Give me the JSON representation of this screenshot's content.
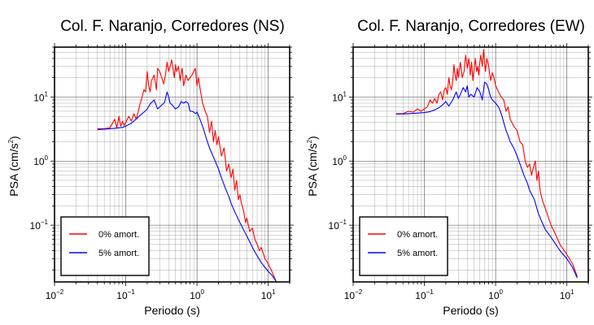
{
  "chart_data": [
    {
      "type": "line",
      "title": "Col. F. Naranjo, Corredores (NS)",
      "xlabel": "Periodo (s)",
      "ylabel": "PSA (cm/s",
      "ylabel_unit_exp": "2",
      "ylabel_close": ")",
      "x_scale": "log",
      "y_scale": "log",
      "xlim": [
        0.01,
        20
      ],
      "ylim": [
        0.013,
        60
      ],
      "x_ticks": [
        {
          "value": 0.01,
          "base": "10",
          "exp": "−2"
        },
        {
          "value": 0.1,
          "base": "10",
          "exp": "−1"
        },
        {
          "value": 1,
          "base": "10",
          "exp": "0"
        },
        {
          "value": 10,
          "base": "10",
          "exp": "1"
        }
      ],
      "y_ticks": [
        {
          "value": 0.1,
          "base": "10",
          "exp": "−1"
        },
        {
          "value": 1,
          "base": "10",
          "exp": "0"
        },
        {
          "value": 10,
          "base": "10",
          "exp": "1"
        }
      ],
      "grid": true,
      "legend_position": "bottom-left",
      "series": [
        {
          "name": "0% amort.",
          "color": "#ff0000",
          "x": [
            0.04,
            0.05,
            0.06,
            0.07,
            0.075,
            0.08,
            0.085,
            0.09,
            0.095,
            0.1,
            0.11,
            0.12,
            0.13,
            0.14,
            0.15,
            0.16,
            0.17,
            0.18,
            0.19,
            0.2,
            0.21,
            0.22,
            0.23,
            0.25,
            0.27,
            0.28,
            0.3,
            0.32,
            0.34,
            0.36,
            0.38,
            0.4,
            0.42,
            0.44,
            0.46,
            0.48,
            0.5,
            0.52,
            0.55,
            0.58,
            0.6,
            0.62,
            0.65,
            0.7,
            0.75,
            0.8,
            0.85,
            0.9,
            0.95,
            1.0,
            1.05,
            1.1,
            1.2,
            1.3,
            1.4,
            1.5,
            1.6,
            1.7,
            1.8,
            1.9,
            2.0,
            2.2,
            2.4,
            2.6,
            2.8,
            3.0,
            3.2,
            3.4,
            3.6,
            3.8,
            4.0,
            4.2,
            4.5,
            4.8,
            5.0,
            5.5,
            6.0,
            6.5,
            7.0,
            7.5,
            8.0,
            9.0,
            10.0,
            11.0,
            12.0,
            13.0
          ],
          "y": [
            3.2,
            3.2,
            3.3,
            4.5,
            3.3,
            5.0,
            3.5,
            4.2,
            3.6,
            4.0,
            5.0,
            4.2,
            5.5,
            4.5,
            6.0,
            8.0,
            10.0,
            13.0,
            12.0,
            25.0,
            15.0,
            12.0,
            18.0,
            22.0,
            13.0,
            28.0,
            25.0,
            20.0,
            16.0,
            22.0,
            35.0,
            25.0,
            30.0,
            38.0,
            28.0,
            20.0,
            32.0,
            25.0,
            30.0,
            18.0,
            24.0,
            28.0,
            15.0,
            22.0,
            18.0,
            20.0,
            22.0,
            25.0,
            28.0,
            15.0,
            20.0,
            14.0,
            8.0,
            6.0,
            5.0,
            2.8,
            4.2,
            2.0,
            3.0,
            1.8,
            2.4,
            1.2,
            1.6,
            0.7,
            0.9,
            0.55,
            0.75,
            0.35,
            0.5,
            0.25,
            0.3,
            0.22,
            0.17,
            0.11,
            0.13,
            0.08,
            0.09,
            0.06,
            0.05,
            0.04,
            0.045,
            0.03,
            0.025,
            0.02,
            0.016,
            0.013
          ]
        },
        {
          "name": "5% amort.",
          "color": "#0000ff",
          "x": [
            0.04,
            0.05,
            0.06,
            0.07,
            0.08,
            0.09,
            0.1,
            0.12,
            0.14,
            0.16,
            0.18,
            0.2,
            0.22,
            0.25,
            0.28,
            0.3,
            0.32,
            0.35,
            0.38,
            0.4,
            0.42,
            0.45,
            0.5,
            0.55,
            0.6,
            0.65,
            0.7,
            0.75,
            0.8,
            0.85,
            0.9,
            0.95,
            1.0,
            1.1,
            1.2,
            1.3,
            1.4,
            1.5,
            1.6,
            1.8,
            2.0,
            2.2,
            2.5,
            2.8,
            3.0,
            3.5,
            4.0,
            4.5,
            5.0,
            6.0,
            7.0,
            8.0,
            9.0,
            10.0,
            11.0,
            12.0,
            13.0
          ],
          "y": [
            3.1,
            3.15,
            3.2,
            3.25,
            3.3,
            3.35,
            3.5,
            3.9,
            4.5,
            5.2,
            5.8,
            6.5,
            7.8,
            9.0,
            6.5,
            7.0,
            7.5,
            8.2,
            12.0,
            10.0,
            8.0,
            7.5,
            6.5,
            7.0,
            8.5,
            8.0,
            8.5,
            8.0,
            6.0,
            6.0,
            5.8,
            5.5,
            5.8,
            4.5,
            3.5,
            2.6,
            2.0,
            1.6,
            1.35,
            1.0,
            0.75,
            0.55,
            0.38,
            0.28,
            0.22,
            0.15,
            0.11,
            0.085,
            0.068,
            0.045,
            0.033,
            0.026,
            0.022,
            0.019,
            0.017,
            0.015,
            0.013
          ]
        }
      ]
    },
    {
      "type": "line",
      "title": "Col. F. Naranjo, Corredores (EW)",
      "xlabel": "Periodo (s)",
      "ylabel": "PSA (cm/s",
      "ylabel_unit_exp": "2",
      "ylabel_close": ")",
      "x_scale": "log",
      "y_scale": "log",
      "xlim": [
        0.01,
        20
      ],
      "ylim": [
        0.013,
        60
      ],
      "x_ticks": [
        {
          "value": 0.01,
          "base": "10",
          "exp": "−2"
        },
        {
          "value": 0.1,
          "base": "10",
          "exp": "−1"
        },
        {
          "value": 1,
          "base": "10",
          "exp": "0"
        },
        {
          "value": 10,
          "base": "10",
          "exp": "1"
        }
      ],
      "y_ticks": [
        {
          "value": 0.1,
          "base": "10",
          "exp": "−1"
        },
        {
          "value": 1,
          "base": "10",
          "exp": "0"
        },
        {
          "value": 10,
          "base": "10",
          "exp": "1"
        }
      ],
      "grid": true,
      "legend_position": "bottom-left",
      "series": [
        {
          "name": "0% amort.",
          "color": "#ff0000",
          "x": [
            0.04,
            0.05,
            0.06,
            0.07,
            0.08,
            0.09,
            0.1,
            0.11,
            0.12,
            0.13,
            0.14,
            0.15,
            0.16,
            0.17,
            0.18,
            0.19,
            0.2,
            0.21,
            0.22,
            0.23,
            0.24,
            0.25,
            0.26,
            0.27,
            0.28,
            0.29,
            0.3,
            0.32,
            0.34,
            0.36,
            0.38,
            0.4,
            0.42,
            0.44,
            0.46,
            0.48,
            0.5,
            0.52,
            0.54,
            0.56,
            0.58,
            0.6,
            0.62,
            0.65,
            0.68,
            0.7,
            0.72,
            0.75,
            0.8,
            0.85,
            0.9,
            0.95,
            1.0,
            1.1,
            1.2,
            1.3,
            1.4,
            1.5,
            1.6,
            1.8,
            2.0,
            2.2,
            2.4,
            2.6,
            2.8,
            3.0,
            3.2,
            3.4,
            3.6,
            3.8,
            4.0,
            4.2,
            4.5,
            5.0,
            6.0,
            7.0,
            8.0,
            10.0,
            12.0,
            14.0
          ],
          "y": [
            5.5,
            5.5,
            6.0,
            5.8,
            6.5,
            6.0,
            6.5,
            7.0,
            9.0,
            8.0,
            9.5,
            8.0,
            11.0,
            12.0,
            9.0,
            13.0,
            14.0,
            11.0,
            20.0,
            15.0,
            13.0,
            18.0,
            32.0,
            22.0,
            18.0,
            28.0,
            20.0,
            35.0,
            20.0,
            25.0,
            45.0,
            28.0,
            40.0,
            22.0,
            35.0,
            18.0,
            28.0,
            40.0,
            25.0,
            30.0,
            22.0,
            35.0,
            45.0,
            30.0,
            55.0,
            35.0,
            25.0,
            40.0,
            30.0,
            18.0,
            24.0,
            20.0,
            15.0,
            12.0,
            10.0,
            9.0,
            6.0,
            7.0,
            4.5,
            3.5,
            3.0,
            2.0,
            1.8,
            1.0,
            0.8,
            0.9,
            0.6,
            0.8,
            1.0,
            0.5,
            0.7,
            0.35,
            0.25,
            0.18,
            0.1,
            0.07,
            0.05,
            0.035,
            0.025,
            0.016
          ]
        },
        {
          "name": "5% amort.",
          "color": "#0000ff",
          "x": [
            0.04,
            0.05,
            0.06,
            0.08,
            0.1,
            0.12,
            0.14,
            0.16,
            0.18,
            0.2,
            0.22,
            0.25,
            0.28,
            0.3,
            0.32,
            0.35,
            0.38,
            0.4,
            0.42,
            0.45,
            0.5,
            0.55,
            0.6,
            0.65,
            0.7,
            0.75,
            0.8,
            0.85,
            0.9,
            1.0,
            1.1,
            1.2,
            1.3,
            1.4,
            1.5,
            1.6,
            1.8,
            2.0,
            2.2,
            2.5,
            2.8,
            3.0,
            3.5,
            4.0,
            4.5,
            5.0,
            6.0,
            7.0,
            8.0,
            10.0,
            12.0,
            14.0
          ],
          "y": [
            5.4,
            5.45,
            5.5,
            5.6,
            5.7,
            5.9,
            6.3,
            6.8,
            7.5,
            8.5,
            7.2,
            9.0,
            12.0,
            9.5,
            11.0,
            14.0,
            12.0,
            15.0,
            10.0,
            11.0,
            10.0,
            14.0,
            12.0,
            9.0,
            17.0,
            16.0,
            13.0,
            10.0,
            9.0,
            8.0,
            7.0,
            5.5,
            4.0,
            3.0,
            2.5,
            2.0,
            1.6,
            1.2,
            0.9,
            0.6,
            0.45,
            0.35,
            0.25,
            0.15,
            0.11,
            0.085,
            0.065,
            0.05,
            0.04,
            0.03,
            0.022,
            0.015
          ]
        }
      ]
    }
  ]
}
